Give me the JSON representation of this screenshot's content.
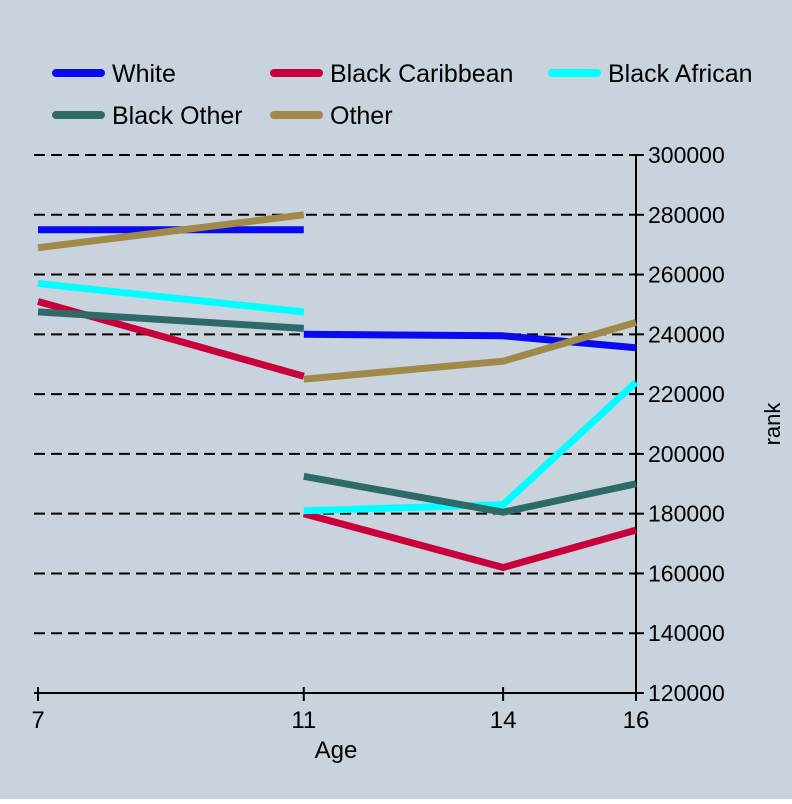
{
  "colors": {
    "background": "#c9d3de",
    "grid": "#000000",
    "axis": "#000000"
  },
  "chart_data": {
    "type": "line",
    "title": "",
    "xlabel": "Age",
    "ylabel": "rank",
    "xlim": [
      7,
      16
    ],
    "ylim": [
      120000,
      300000
    ],
    "x_ticks": [
      7,
      11,
      14,
      16
    ],
    "y_ticks": [
      120000,
      140000,
      160000,
      180000,
      200000,
      220000,
      240000,
      260000,
      280000,
      300000
    ],
    "grid": true,
    "y_axis_side": "right",
    "legend_position": "top",
    "series": [
      {
        "name": "White",
        "color": "#0a0af0",
        "segments": [
          [
            [
              7,
              275000
            ],
            [
              11,
              275000
            ]
          ],
          [
            [
              11,
              240000
            ],
            [
              14,
              239500
            ],
            [
              16,
              235500
            ]
          ]
        ]
      },
      {
        "name": "Black Caribbean",
        "color": "#c8003c",
        "segments": [
          [
            [
              7,
              251000
            ],
            [
              11,
              226000
            ]
          ],
          [
            [
              11,
              180000
            ],
            [
              14,
              162000
            ],
            [
              16,
              174500
            ]
          ]
        ]
      },
      {
        "name": "Black African",
        "color": "#00ffff",
        "segments": [
          [
            [
              7,
              257000
            ],
            [
              11,
              247500
            ]
          ],
          [
            [
              11,
              181000
            ],
            [
              14,
              183000
            ],
            [
              16,
              224000
            ]
          ]
        ]
      },
      {
        "name": "Black Other",
        "color": "#2e6b68",
        "segments": [
          [
            [
              7,
              247500
            ],
            [
              11,
              242000
            ]
          ],
          [
            [
              11,
              192500
            ],
            [
              14,
              180500
            ],
            [
              16,
              190000
            ]
          ]
        ]
      },
      {
        "name": "Other",
        "color": "#a08a4a",
        "segments": [
          [
            [
              7,
              269000
            ],
            [
              11,
              280000
            ]
          ],
          [
            [
              11,
              225000
            ],
            [
              14,
              231000
            ],
            [
              16,
              244000
            ]
          ]
        ]
      }
    ]
  }
}
